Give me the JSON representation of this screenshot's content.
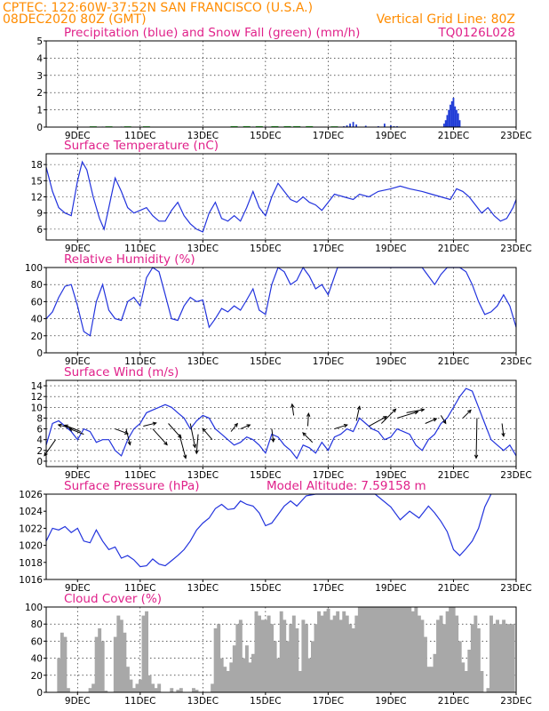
{
  "header": {
    "line1": "CPTEC:   122:60W-37:52N  SAN FRANCISCO (U.S.A.)",
    "line2_left": "08DEC2020 80Z (GMT)",
    "line2_right": "Vertical Grid Line: 80Z",
    "run_code": "TQ0126L028"
  },
  "x_ticks": [
    "9DEC",
    "11DEC",
    "13DEC",
    "15DEC",
    "17DEC",
    "19DEC",
    "21DEC",
    "23DEC"
  ],
  "colors": {
    "header": "#ff8c00",
    "title": "#e0218a",
    "line": "#2233dd",
    "precip": "#1f3bd6",
    "snow": "#22bb22",
    "cloud": "#a8a8a8",
    "wind_arrow": "#000000"
  },
  "chart_data": [
    {
      "type": "bar",
      "title": "Precipitation (blue) and Snow Fall (green) (mm/h)",
      "ylim": [
        0,
        5
      ],
      "yticks": [
        0,
        1,
        2,
        3,
        4,
        5
      ],
      "grid": true,
      "x_day_offset": [
        9.6,
        9.8,
        10.2,
        10.4,
        10.9,
        11.1,
        11.3,
        13.9,
        14.2,
        14.6,
        15.0,
        15.2,
        15.5,
        15.8,
        16.1,
        16.3,
        17.5,
        17.6,
        17.7,
        17.8,
        17.9,
        18.2,
        18.6,
        18.8,
        19.0,
        19.1,
        19.2,
        20.7,
        20.75,
        20.8,
        20.85,
        20.9,
        20.95,
        21.0,
        21.05,
        21.1,
        21.15,
        21.2
      ],
      "precip_values": [
        0.02,
        0.03,
        0.02,
        0.03,
        0.02,
        0.02,
        0.02,
        0.02,
        0.02,
        0.03,
        0.03,
        0.02,
        0.02,
        0.02,
        0.03,
        0.02,
        0.05,
        0.1,
        0.2,
        0.3,
        0.15,
        0.08,
        0.05,
        0.2,
        0.1,
        0.05,
        0.05,
        0.2,
        0.4,
        0.7,
        1.0,
        1.3,
        1.5,
        1.7,
        1.2,
        1.0,
        0.8,
        0.4
      ],
      "snow_x_day_offset": [
        9.5,
        10.0,
        10.6,
        11.2,
        14.0,
        14.4,
        14.8,
        15.3,
        15.7,
        16.0,
        16.4,
        17.2
      ],
      "snow_values": [
        0.02,
        0.02,
        0.02,
        0.02,
        0.03,
        0.03,
        0.03,
        0.03,
        0.03,
        0.03,
        0.03,
        0.02
      ]
    },
    {
      "type": "line",
      "title": "Surface Temperature (nC)",
      "ylim": [
        4,
        20
      ],
      "yticks": [
        6,
        9,
        12,
        15,
        18
      ],
      "grid": true,
      "x": [
        8.0,
        8.2,
        8.4,
        8.6,
        8.8,
        9.0,
        9.15,
        9.3,
        9.5,
        9.7,
        9.85,
        10.0,
        10.2,
        10.4,
        10.6,
        10.8,
        11.0,
        11.2,
        11.4,
        11.6,
        11.8,
        12.0,
        12.2,
        12.4,
        12.6,
        12.8,
        13.0,
        13.2,
        13.4,
        13.6,
        13.8,
        14.0,
        14.2,
        14.4,
        14.6,
        14.8,
        15.0,
        15.2,
        15.4,
        15.6,
        15.8,
        16.0,
        16.2,
        16.4,
        16.6,
        16.8,
        17.0,
        17.2,
        17.5,
        17.8,
        18.0,
        18.3,
        18.6,
        19.0,
        19.3,
        19.6,
        20.0,
        20.3,
        20.6,
        20.9,
        21.1,
        21.3,
        21.5,
        21.7,
        21.9,
        22.1,
        22.3,
        22.5,
        22.7,
        22.9,
        23.0
      ],
      "values": [
        17.5,
        13,
        10,
        9,
        8.5,
        15,
        18.5,
        17,
        12,
        8,
        6,
        10,
        15.5,
        13,
        10,
        9,
        9.5,
        10,
        8.5,
        7.5,
        7.5,
        9.5,
        11,
        8.5,
        7,
        6,
        5.5,
        9,
        11,
        8,
        7.5,
        8.5,
        7.5,
        10,
        13,
        10,
        8.5,
        12,
        14.5,
        13,
        11.5,
        11,
        12,
        11,
        10.5,
        9.5,
        11,
        12.5,
        12,
        11.5,
        12.5,
        12,
        13,
        13.5,
        14,
        13.5,
        13,
        12.5,
        12,
        11.5,
        13.5,
        13,
        12,
        10.5,
        9,
        10,
        8.5,
        7.5,
        8,
        10,
        11.5
      ]
    },
    {
      "type": "line",
      "title": "Relative Humidity (%)",
      "ylim": [
        0,
        100
      ],
      "yticks": [
        0,
        20,
        40,
        60,
        80,
        100
      ],
      "grid": true,
      "x": [
        8.0,
        8.2,
        8.4,
        8.6,
        8.8,
        9.0,
        9.2,
        9.4,
        9.6,
        9.8,
        10.0,
        10.2,
        10.4,
        10.6,
        10.8,
        11.0,
        11.2,
        11.4,
        11.6,
        11.8,
        12.0,
        12.2,
        12.4,
        12.6,
        12.8,
        13.0,
        13.2,
        13.4,
        13.6,
        13.8,
        14.0,
        14.2,
        14.4,
        14.6,
        14.8,
        15.0,
        15.2,
        15.4,
        15.6,
        15.8,
        16.0,
        16.2,
        16.4,
        16.6,
        16.8,
        17.0,
        17.3,
        17.6,
        18.0,
        18.5,
        19.0,
        19.5,
        20.0,
        20.2,
        20.4,
        20.6,
        20.8,
        21.0,
        21.2,
        21.4,
        21.6,
        21.8,
        22.0,
        22.2,
        22.4,
        22.6,
        22.8,
        23.0
      ],
      "values": [
        40,
        48,
        65,
        78,
        80,
        55,
        25,
        20,
        60,
        80,
        50,
        40,
        38,
        60,
        65,
        55,
        88,
        100,
        95,
        68,
        40,
        38,
        55,
        65,
        60,
        62,
        30,
        40,
        52,
        48,
        55,
        50,
        62,
        75,
        50,
        45,
        80,
        100,
        95,
        80,
        85,
        100,
        90,
        75,
        80,
        68,
        100,
        100,
        100,
        100,
        100,
        100,
        100,
        90,
        80,
        92,
        100,
        100,
        100,
        95,
        80,
        60,
        45,
        48,
        55,
        68,
        55,
        30
      ]
    },
    {
      "type": "line",
      "title": "Surface Wind (m/s)",
      "ylim": [
        -1,
        15
      ],
      "yticks": [
        0,
        2,
        4,
        6,
        8,
        10,
        12,
        14
      ],
      "grid": true,
      "x": [
        8.0,
        8.2,
        8.4,
        8.6,
        8.8,
        9.0,
        9.2,
        9.4,
        9.6,
        9.8,
        10.0,
        10.2,
        10.4,
        10.6,
        10.8,
        11.0,
        11.2,
        11.4,
        11.6,
        11.8,
        12.0,
        12.2,
        12.4,
        12.6,
        12.8,
        13.0,
        13.2,
        13.4,
        13.6,
        13.8,
        14.0,
        14.2,
        14.4,
        14.6,
        14.8,
        15.0,
        15.2,
        15.4,
        15.6,
        15.8,
        16.0,
        16.2,
        16.4,
        16.6,
        16.8,
        17.0,
        17.2,
        17.4,
        17.6,
        17.8,
        18.0,
        18.2,
        18.4,
        18.6,
        18.8,
        19.0,
        19.2,
        19.4,
        19.6,
        19.8,
        20.0,
        20.2,
        20.4,
        20.6,
        20.8,
        21.0,
        21.2,
        21.4,
        21.6,
        21.8,
        22.0,
        22.2,
        22.4,
        22.6,
        22.8,
        23.0
      ],
      "values": [
        3,
        7,
        7.5,
        6.5,
        5.5,
        4,
        6,
        5.5,
        3.5,
        4,
        4,
        2,
        1,
        4,
        6,
        7,
        9,
        9.5,
        10,
        10.5,
        10,
        9,
        8,
        6,
        7.5,
        8.5,
        8,
        6,
        5,
        4,
        3,
        3.5,
        4.5,
        4,
        3,
        1.5,
        5,
        4.5,
        3,
        2,
        0.5,
        3,
        2.5,
        1.5,
        3.5,
        2,
        4.5,
        5,
        6,
        5.5,
        8,
        7,
        6,
        5.5,
        4,
        4.5,
        6,
        5.5,
        5,
        3,
        2,
        4,
        5,
        7,
        8,
        10,
        12,
        13.5,
        13,
        10,
        7,
        4,
        3,
        2,
        3,
        1
      ]
    },
    {
      "type": "line",
      "title": "Surface Pressure (hPa)",
      "annotation": "Model Altitude: 7.59158 m",
      "ylim": [
        1016,
        1026
      ],
      "yticks": [
        1016,
        1018,
        1020,
        1022,
        1024,
        1026
      ],
      "grid": false,
      "x": [
        8.0,
        8.2,
        8.4,
        8.6,
        8.8,
        9.0,
        9.2,
        9.4,
        9.6,
        9.8,
        10.0,
        10.2,
        10.4,
        10.6,
        10.8,
        11.0,
        11.2,
        11.4,
        11.6,
        11.8,
        12.0,
        12.2,
        12.4,
        12.6,
        12.8,
        13.0,
        13.2,
        13.4,
        13.6,
        13.8,
        14.0,
        14.2,
        14.4,
        14.6,
        14.8,
        15.0,
        15.2,
        15.4,
        15.6,
        15.8,
        16.0,
        16.3,
        16.6,
        17.0,
        17.5,
        18.0,
        18.5,
        19.0,
        19.3,
        19.6,
        19.9,
        20.2,
        20.4,
        20.6,
        20.8,
        21.0,
        21.2,
        21.4,
        21.6,
        21.8,
        22.0,
        22.2
      ],
      "values": [
        1020.5,
        1022,
        1021.8,
        1022.2,
        1021.5,
        1022,
        1020.5,
        1020.3,
        1021.8,
        1020.5,
        1019.5,
        1019.8,
        1018.5,
        1018.8,
        1018.3,
        1017.5,
        1017.6,
        1018.4,
        1017.8,
        1017.6,
        1018.2,
        1018.8,
        1019.5,
        1020.5,
        1021.8,
        1022.6,
        1023.2,
        1024.3,
        1024.8,
        1024.2,
        1024.3,
        1025.2,
        1024.8,
        1024.6,
        1023.8,
        1022.3,
        1022.6,
        1023.6,
        1024.6,
        1025.2,
        1024.6,
        1025.8,
        1026,
        1026,
        1026,
        1026,
        1026,
        1024.5,
        1023,
        1024,
        1023.2,
        1024.6,
        1023.8,
        1022.8,
        1021.6,
        1019.5,
        1018.8,
        1019.6,
        1020.5,
        1022,
        1024.5,
        1026
      ]
    },
    {
      "type": "bar",
      "title": "Cloud Cover (%)",
      "ylim": [
        0,
        100
      ],
      "yticks": [
        0,
        20,
        40,
        60,
        80,
        100
      ],
      "grid": true,
      "x_day_offset": [
        8.2,
        8.3,
        8.4,
        8.5,
        8.6,
        8.7,
        8.8,
        8.9,
        9.0,
        9.1,
        9.2,
        9.3,
        9.4,
        9.5,
        9.6,
        9.7,
        9.8,
        9.9,
        10.0,
        10.1,
        10.2,
        10.3,
        10.4,
        10.5,
        10.6,
        10.7,
        10.8,
        10.9,
        11.0,
        11.1,
        11.2,
        11.3,
        11.4,
        11.5,
        11.6,
        11.7,
        11.8,
        11.9,
        12.0,
        12.1,
        12.2,
        12.3,
        12.4,
        12.5,
        12.6,
        12.7,
        12.8,
        12.9,
        13.0,
        13.1,
        13.2,
        13.3,
        13.4,
        13.5,
        13.6,
        13.7,
        13.8,
        13.9,
        14.0,
        14.1,
        14.2,
        14.3,
        14.4,
        14.5,
        14.6,
        14.7,
        14.8,
        14.9,
        15.0,
        15.1,
        15.2,
        15.3,
        15.4,
        15.5,
        15.6,
        15.7,
        15.8,
        15.9,
        16.0,
        16.1,
        16.2,
        16.3,
        16.4,
        16.5,
        16.6,
        16.7,
        16.8,
        16.9,
        17.0,
        17.1,
        17.2,
        17.3,
        17.4,
        17.5,
        17.6,
        17.7,
        17.8,
        17.9,
        18.0,
        18.1,
        18.2,
        18.3,
        18.4,
        18.5,
        18.6,
        18.7,
        18.8,
        18.9,
        19.0,
        19.1,
        19.2,
        19.3,
        19.4,
        19.5,
        19.6,
        19.7,
        19.8,
        19.9,
        20.0,
        20.1,
        20.2,
        20.3,
        20.4,
        20.5,
        20.6,
        20.7,
        20.8,
        20.9,
        21.0,
        21.1,
        21.2,
        21.3,
        21.4,
        21.5,
        21.6,
        21.7,
        21.8,
        21.9,
        22.0,
        22.1,
        22.2,
        22.3,
        22.4,
        22.5,
        22.6,
        22.7,
        22.8,
        22.9
      ],
      "values": [
        0,
        0,
        40,
        70,
        65,
        5,
        0,
        0,
        0,
        0,
        0,
        0,
        5,
        10,
        65,
        75,
        60,
        2,
        0,
        0,
        65,
        90,
        85,
        70,
        30,
        15,
        5,
        10,
        15,
        90,
        95,
        20,
        10,
        5,
        10,
        0,
        0,
        0,
        5,
        0,
        3,
        5,
        0,
        0,
        0,
        5,
        3,
        0,
        0,
        0,
        0,
        10,
        75,
        80,
        40,
        30,
        25,
        35,
        55,
        80,
        85,
        40,
        55,
        35,
        45,
        95,
        90,
        85,
        85,
        90,
        80,
        60,
        40,
        95,
        85,
        60,
        80,
        90,
        75,
        25,
        85,
        80,
        40,
        60,
        80,
        95,
        90,
        95,
        98,
        85,
        90,
        95,
        85,
        95,
        90,
        80,
        75,
        90,
        100,
        100,
        100,
        100,
        100,
        100,
        100,
        100,
        100,
        100,
        100,
        100,
        100,
        100,
        100,
        100,
        100,
        95,
        100,
        90,
        85,
        65,
        30,
        30,
        45,
        85,
        90,
        80,
        95,
        100,
        100,
        90,
        60,
        35,
        25,
        50,
        80,
        90,
        75,
        25,
        0,
        5,
        90,
        80,
        85,
        80,
        85,
        80,
        80,
        80
      ]
    }
  ],
  "wind_arrows": [
    {
      "x": 8.3,
      "y": 4,
      "u": -0.7,
      "v": -1.0
    },
    {
      "x": 8.9,
      "y": 6,
      "u": -1.0,
      "v": 0.25
    },
    {
      "x": 9.1,
      "y": 5.5,
      "u": -1.0,
      "v": 0.4
    },
    {
      "x": 9.2,
      "y": 5,
      "u": -0.9,
      "v": 0.35
    },
    {
      "x": 10.2,
      "y": 6,
      "u": 0.8,
      "v": -0.3
    },
    {
      "x": 10.55,
      "y": 6,
      "u": 0.25,
      "v": -1.0
    },
    {
      "x": 11.1,
      "y": 6.5,
      "u": 0.8,
      "v": 0.2
    },
    {
      "x": 11.4,
      "y": 6,
      "u": 0.9,
      "v": -1.0
    },
    {
      "x": 11.9,
      "y": 7,
      "u": 0.8,
      "v": -0.9
    },
    {
      "x": 12.25,
      "y": 5,
      "u": 0.4,
      "v": -1.5
    },
    {
      "x": 12.6,
      "y": 7,
      "u": 0.3,
      "v": -1.5
    },
    {
      "x": 12.85,
      "y": 5,
      "u": -0.1,
      "v": -1.2
    },
    {
      "x": 13.3,
      "y": 4,
      "u": -0.6,
      "v": 0.7
    },
    {
      "x": 13.9,
      "y": 5.5,
      "u": 0.4,
      "v": 0.5
    },
    {
      "x": 14.2,
      "y": 6,
      "u": 0.6,
      "v": 0.25
    },
    {
      "x": 15.2,
      "y": 6,
      "u": 0.1,
      "v": -0.8
    },
    {
      "x": 15.9,
      "y": 8.5,
      "u": -0.1,
      "v": 0.7
    },
    {
      "x": 16.35,
      "y": 6.5,
      "u": 0.05,
      "v": 0.8
    },
    {
      "x": 16.5,
      "y": 3.5,
      "u": -0.6,
      "v": 0.6
    },
    {
      "x": 17.2,
      "y": 6,
      "u": 0.8,
      "v": 0.25
    },
    {
      "x": 17.9,
      "y": 7.5,
      "u": 0.2,
      "v": 0.9
    },
    {
      "x": 18.3,
      "y": 6.5,
      "u": 1.1,
      "v": 0.6
    },
    {
      "x": 18.7,
      "y": 7,
      "u": 0.9,
      "v": 0.9
    },
    {
      "x": 19.2,
      "y": 8,
      "u": 1.3,
      "v": 0.4
    },
    {
      "x": 19.5,
      "y": 9,
      "u": 1.1,
      "v": 0.2
    },
    {
      "x": 20.1,
      "y": 7,
      "u": 0.7,
      "v": 0.3
    },
    {
      "x": 20.6,
      "y": 8.5,
      "u": 0.3,
      "v": -0.5
    },
    {
      "x": 21.3,
      "y": 8,
      "u": 0.5,
      "v": 0.5
    },
    {
      "x": 21.75,
      "y": 8,
      "u": -0.05,
      "v": -2.5
    },
    {
      "x": 22.55,
      "y": 7,
      "u": 0.1,
      "v": -0.8
    }
  ]
}
